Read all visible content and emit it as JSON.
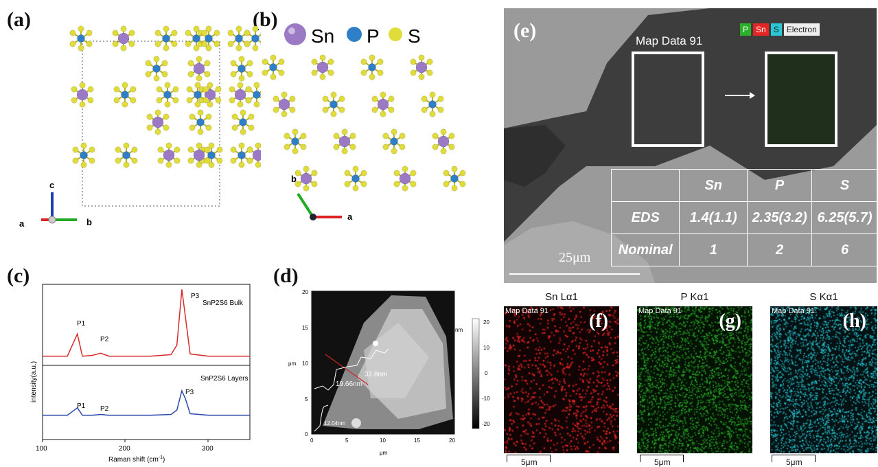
{
  "labels": {
    "a": "(a)",
    "b": "(b)",
    "c": "(c)",
    "d": "(d)",
    "e": "(e)",
    "f": "(f)",
    "g": "(g)",
    "h": "(h)"
  },
  "panel_a": {
    "axis_a": "a",
    "axis_b": "b",
    "axis_c": "c"
  },
  "panel_b": {
    "legend": [
      "Sn",
      "P",
      "S"
    ],
    "axis_a": "a",
    "axis_b": "b",
    "colors": {
      "Sn": "#9b79c4",
      "P": "#2f7fc8",
      "S": "#e0dc3a"
    }
  },
  "panel_c": {
    "ylabel": "intensity(a.u.)",
    "xlabel": "Raman shift (cm",
    "xlabel_sup": "-1",
    "xlabel_end": ")",
    "ticks": [
      "100",
      "200",
      "300"
    ],
    "top": {
      "name": "SnP2S6 Bulk",
      "color": "#d62a2a",
      "peaks": [
        "P1",
        "P2",
        "P3"
      ]
    },
    "bottom": {
      "name": "SnP2S6 Layers",
      "color": "#2a4aa8",
      "peaks": [
        "P1",
        "P2",
        "P3"
      ]
    }
  },
  "panel_d": {
    "xlabel": "μm",
    "ylabel": "μm",
    "xticks": [
      "0",
      "5",
      "10",
      "15",
      "20"
    ],
    "yticks": [
      "0",
      "5",
      "10",
      "15",
      "20"
    ],
    "cbar_ticks": [
      "20",
      "10",
      "0",
      "-10",
      "-20"
    ],
    "cbar_unit": "nm",
    "heights": [
      "32.8nm",
      "19.66nm",
      "12.04nm"
    ]
  },
  "panel_e": {
    "map_title": "Map Data 91",
    "legend": [
      "P",
      "Sn",
      "S",
      "Electron"
    ],
    "scale": "25μm",
    "table": {
      "header": [
        "",
        "Sn",
        "P",
        "S"
      ],
      "rows": [
        [
          "EDS",
          "1.4(1.1)",
          "2.35(3.2)",
          "6.25(5.7)"
        ],
        [
          "Nominal",
          "1",
          "2",
          "6"
        ]
      ]
    }
  },
  "maps": [
    {
      "title": "Sn Lα1",
      "tag": "Map Data 91",
      "letter": "(f)",
      "scale": "5μm",
      "color": "#e52525"
    },
    {
      "title": "P Kα1",
      "tag": "Map Data 91",
      "letter": "(g)",
      "scale": "5μm",
      "color": "#2bb52b"
    },
    {
      "title": "S Kα1",
      "tag": "Map Data 91",
      "letter": "(h)",
      "scale": "5μm",
      "color": "#2ac8d4"
    }
  ],
  "chart_data": [
    {
      "type": "line",
      "title": "",
      "xlabel": "Raman shift (cm-1)",
      "ylabel": "intensity(a.u.)",
      "xlim": [
        100,
        350
      ],
      "series": [
        {
          "name": "SnP2S6 Bulk",
          "x": [
            100,
            130,
            142,
            148,
            160,
            170,
            180,
            230,
            255,
            262,
            268,
            272,
            278,
            300,
            350
          ],
          "y": [
            0.05,
            0.05,
            0.35,
            0.05,
            0.06,
            0.09,
            0.05,
            0.05,
            0.07,
            0.2,
            0.95,
            0.6,
            0.08,
            0.05,
            0.05
          ]
        },
        {
          "name": "SnP2S6 Layers",
          "x": [
            100,
            130,
            142,
            148,
            160,
            170,
            180,
            230,
            255,
            262,
            268,
            272,
            278,
            300,
            350
          ],
          "y": [
            0.05,
            0.05,
            0.15,
            0.05,
            0.05,
            0.06,
            0.05,
            0.05,
            0.06,
            0.12,
            0.38,
            0.28,
            0.07,
            0.05,
            0.05
          ]
        }
      ],
      "annotations": [
        "P1",
        "P2",
        "P3"
      ]
    }
  ]
}
